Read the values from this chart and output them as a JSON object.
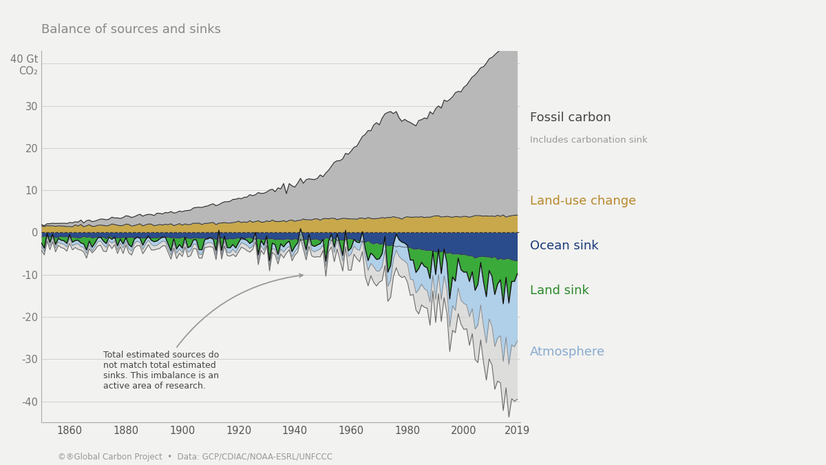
{
  "title": "Balance of sources and sinks",
  "yticks": [
    40,
    30,
    20,
    10,
    0,
    -10,
    -20,
    -30,
    -40
  ],
  "ylim": [
    -45,
    43
  ],
  "xlim": [
    1850,
    2020
  ],
  "xticks": [
    1860,
    1880,
    1900,
    1920,
    1940,
    1960,
    1980,
    2000,
    2019
  ],
  "background_color": "#f2f2f0",
  "fossil_color": "#b8b8b8",
  "luc_color": "#c8a84b",
  "ocean_color": "#2b4c8c",
  "land_color": "#3aaa3a",
  "atm_color": "#b0cfe8",
  "imbalance_color": "#d0d0d0",
  "fossil_label": "Fossil carbon",
  "fossil_sublabel": "Includes carbonation sink",
  "luc_label": "Land-use change",
  "ocean_label": "Ocean sink",
  "land_label": "Land sink",
  "atm_label": "Atmosphere",
  "annotation_text": "Total estimated sources do\nnot match total estimated\nsinks. This imbalance is an\nactive area of research.",
  "footer_text": "©®Global Carbon Project  •  Data: GCP/CDIAC/NOAA-ESRL/UNFCCC"
}
